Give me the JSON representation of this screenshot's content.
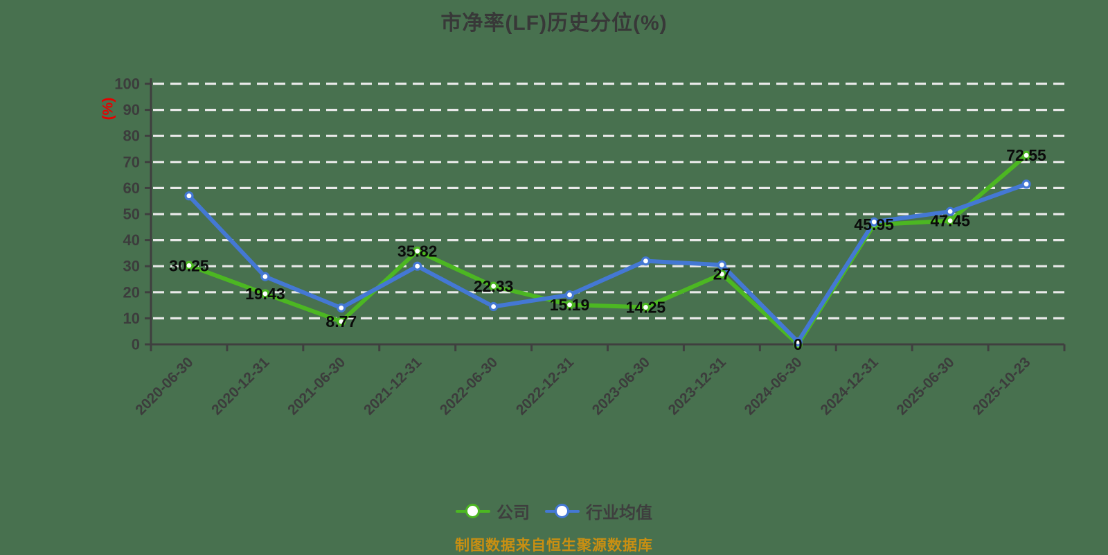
{
  "title": "市净率(LF)历史分位(%)",
  "y_axis_unit": "(%)",
  "footer_note": "制图数据来自恒生聚源数据库",
  "colors": {
    "background": "#48714F",
    "company_line": "#4CB722",
    "industry_line": "#4478D4",
    "axis": "#3F3F3F",
    "grid": "#E9E9E9",
    "tick_text": "#3C3C3C",
    "value_label": "#0A0A0A",
    "unit_label": "#E60000",
    "footer_text": "#C98F12",
    "title_text": "#383838"
  },
  "legend": {
    "items": [
      {
        "label": "公司",
        "color": "#4CB722"
      },
      {
        "label": "行业均值",
        "color": "#4478D4"
      }
    ]
  },
  "chart_data": {
    "type": "line",
    "title": "市净率(LF)历史分位(%)",
    "xlabel": "",
    "ylabel": "(%)",
    "ylim": [
      0,
      100
    ],
    "y_ticks": [
      0,
      10,
      20,
      30,
      40,
      50,
      60,
      70,
      80,
      90,
      100
    ],
    "grid": "horizontal-dashed",
    "legend_position": "bottom",
    "categories": [
      "2020-06-30",
      "2020-12-31",
      "2021-06-30",
      "2021-12-31",
      "2022-06-30",
      "2022-12-31",
      "2023-06-30",
      "2023-12-31",
      "2024-06-30",
      "2024-12-31",
      "2025-06-30",
      "2025-10-23"
    ],
    "series": [
      {
        "name": "公司",
        "color": "#4CB722",
        "values": [
          30.25,
          19.43,
          8.77,
          35.82,
          22.33,
          15.19,
          14.25,
          27,
          0,
          45.95,
          47.45,
          72.55
        ],
        "labels": [
          "30.25",
          "19.43",
          "8.77",
          "35.82",
          "22.33",
          "15.19",
          "14.25",
          "27",
          "0",
          "45.95",
          "47.45",
          "72.55"
        ]
      },
      {
        "name": "行业均值",
        "color": "#4478D4",
        "values": [
          57,
          26,
          14,
          30,
          14.5,
          19,
          32,
          30.5,
          1,
          47,
          51,
          61.5
        ],
        "labels": null
      }
    ]
  }
}
